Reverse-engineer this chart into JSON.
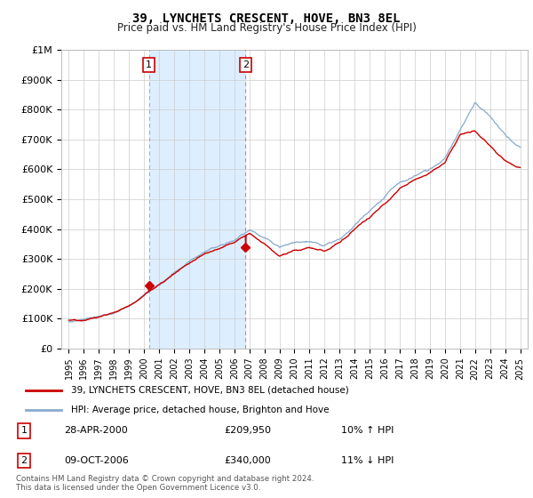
{
  "title": "39, LYNCHETS CRESCENT, HOVE, BN3 8EL",
  "subtitle": "Price paid vs. HM Land Registry's House Price Index (HPI)",
  "background_color": "#ffffff",
  "grid_color": "#cccccc",
  "sale1_year": 2000.33,
  "sale1_value": 209950,
  "sale1_date": "28-APR-2000",
  "sale1_hpi_text": "10% ↑ HPI",
  "sale2_year": 2006.75,
  "sale2_value": 340000,
  "sale2_date": "09-OCT-2006",
  "sale2_hpi_text": "11% ↓ HPI",
  "red_line_color": "#cc0000",
  "blue_line_color": "#88aacc",
  "shade_color": "#ddeeff",
  "vline1_color": "#aaaacc",
  "vline2_color": "#cc8888",
  "legend_label_red": "39, LYNCHETS CRESCENT, HOVE, BN3 8EL (detached house)",
  "legend_label_blue": "HPI: Average price, detached house, Brighton and Hove",
  "footer": "Contains HM Land Registry data © Crown copyright and database right 2024.\nThis data is licensed under the Open Government Licence v3.0.",
  "ylim": [
    0,
    1000000
  ],
  "xlim_start": 1994.5,
  "xlim_end": 2025.5,
  "yticks": [
    0,
    100000,
    200000,
    300000,
    400000,
    500000,
    600000,
    700000,
    800000,
    900000,
    1000000
  ],
  "ytick_labels": [
    "£0",
    "£100K",
    "£200K",
    "£300K",
    "£400K",
    "£500K",
    "£600K",
    "£700K",
    "£800K",
    "£900K",
    "£1M"
  ]
}
